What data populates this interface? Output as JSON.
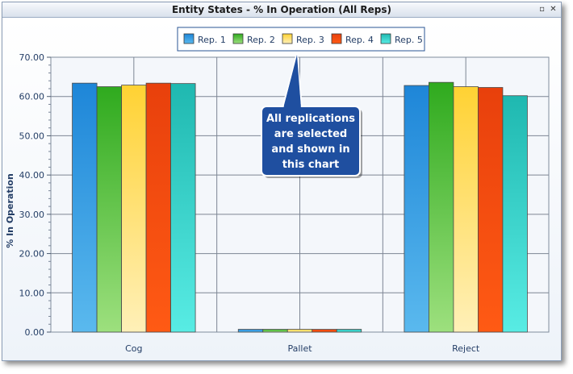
{
  "window": {
    "title": "Entity States - % In Operation (All Reps)",
    "pin_icon": "pin-icon",
    "close_icon": "close-icon",
    "pin_glyph": "▫",
    "close_glyph": "✕"
  },
  "callout": {
    "lines": [
      "All replications",
      "are selected",
      "and shown in",
      "this chart"
    ],
    "bg_color": "#1f4fa0"
  },
  "chart_data": {
    "type": "bar",
    "categories": [
      "Cog",
      "Pallet",
      "Reject"
    ],
    "ylabel": "% In Operation",
    "xlabel": "",
    "ylim": [
      0,
      70
    ],
    "yticks": [
      "0.00",
      "10.00",
      "20.00",
      "30.00",
      "40.00",
      "50.00",
      "60.00",
      "70.00"
    ],
    "grid": true,
    "legend_position": "top-center",
    "series": [
      {
        "name": "Rep. 1",
        "values": [
          63.4,
          0.7,
          62.8
        ],
        "color_top": "#1e86d8",
        "color_bottom": "#5ab9ee"
      },
      {
        "name": "Rep. 2",
        "values": [
          62.5,
          0.7,
          63.6
        ],
        "color_top": "#2faa1e",
        "color_bottom": "#9de07e"
      },
      {
        "name": "Rep. 3",
        "values": [
          62.9,
          0.7,
          62.5
        ],
        "color_top": "#ffd233",
        "color_bottom": "#fff0b8"
      },
      {
        "name": "Rep. 4",
        "values": [
          63.4,
          0.7,
          62.3
        ],
        "color_top": "#e8400c",
        "color_bottom": "#ff5a14"
      },
      {
        "name": "Rep. 5",
        "values": [
          63.3,
          0.7,
          60.2
        ],
        "color_top": "#1fb8b0",
        "color_bottom": "#58ece4"
      }
    ]
  }
}
